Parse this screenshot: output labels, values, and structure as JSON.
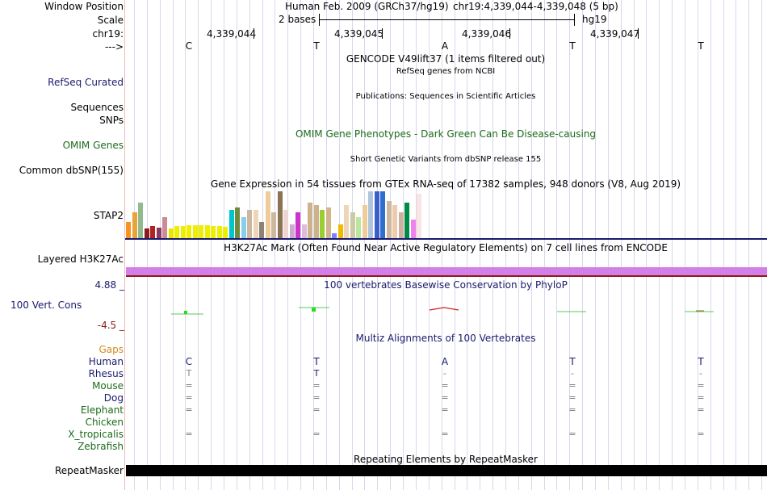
{
  "header": {
    "window_position_label": "Window Position",
    "scale_label": "Scale",
    "chrom_label": "chr19:",
    "strand_label": "--->",
    "assembly_title": "Human Feb. 2009 (GRCh37/hg19)",
    "position": "chr19:4,339,044-4,339,048 (5 bp)",
    "scale_text": "2 bases",
    "scale_db": "hg19",
    "positions": [
      "4,339,044",
      "4,339,045",
      "4,339,046",
      "4,339,047"
    ],
    "bases": [
      "C",
      "T",
      "A",
      "T",
      "T"
    ]
  },
  "tracks": {
    "gencode_title": "GENCODE V49lift37 (1 items filtered out)",
    "refseq_label": "RefSeq Curated",
    "refseq_title": "RefSeq genes from NCBI",
    "sequences_label": "Sequences",
    "publications_title": "Publications: Sequences in Scientific Articles",
    "snps_label": "SNPs",
    "omim_title": "OMIM Gene Phenotypes - Dark Green Can Be Disease-causing",
    "omim_label": "OMIM Genes",
    "dbsnp_title": "Short Genetic Variants from dbSNP release 155",
    "dbsnp_label": "Common dbSNP(155)",
    "gtex_title": "Gene Expression in 54 tissues from GTEx RNA-seq of 17382 samples, 948 donors (V8, Aug 2019)",
    "gtex_label": "STAP2",
    "h3k27_title": "H3K27Ac Mark (Often Found Near Active Regulatory Elements) on 7 cell lines from ENCODE",
    "h3k27_label": "Layered H3K27Ac",
    "phylop_title": "100 vertebrates Basewise Conservation by PhyloP",
    "phylop_label": "100 Vert. Cons",
    "phylop_max": "4.88 _",
    "phylop_min": "-4.5 _",
    "multiz_title": "Multiz Alignments of 100 Vertebrates",
    "repeat_title": "Repeating Elements by RepeatMasker",
    "repeat_label": "RepeatMasker"
  },
  "species": [
    {
      "name": "Gaps",
      "color": "#d08a1c",
      "row": []
    },
    {
      "name": "Human",
      "color": "#1a1a6e",
      "row": [
        "C",
        "T",
        "A",
        "T",
        "T"
      ]
    },
    {
      "name": "Rhesus",
      "color": "#1a1a6e",
      "row": [
        "T",
        "T",
        "-",
        "-",
        "-"
      ]
    },
    {
      "name": "Mouse",
      "color": "#1c6b1c",
      "row": [
        "=",
        "=",
        "=",
        "=",
        "="
      ]
    },
    {
      "name": "Dog",
      "color": "#1a1a6e",
      "row": [
        "=",
        "=",
        "=",
        "=",
        "="
      ]
    },
    {
      "name": "Elephant",
      "color": "#1c6b1c",
      "row": [
        "=",
        "=",
        "=",
        "=",
        "="
      ]
    },
    {
      "name": "Chicken",
      "color": "#1c6b1c",
      "row": []
    },
    {
      "name": "X_tropicalis",
      "color": "#1c6b1c",
      "row": [
        "=",
        "=",
        "=",
        "=",
        "="
      ]
    },
    {
      "name": "Zebrafish",
      "color": "#1c6b1c",
      "row": []
    }
  ],
  "gtex_bars": [
    {
      "v": 0.35,
      "c": "#f7931e"
    },
    {
      "v": 0.55,
      "c": "#e8a33a"
    },
    {
      "v": 0.75,
      "c": "#8fbc8f"
    },
    {
      "v": 0.2,
      "c": "#8b1a1a"
    },
    {
      "v": 0.25,
      "c": "#b22222"
    },
    {
      "v": 0.22,
      "c": "#8b3a62"
    },
    {
      "v": 0.45,
      "c": "#cd8c95"
    },
    {
      "v": 0.2,
      "c": "#e6e600"
    },
    {
      "v": 0.25,
      "c": "#eeee00"
    },
    {
      "v": 0.25,
      "c": "#eeee00"
    },
    {
      "v": 0.28,
      "c": "#eeee00"
    },
    {
      "v": 0.28,
      "c": "#eeee00"
    },
    {
      "v": 0.28,
      "c": "#eeee00"
    },
    {
      "v": 0.27,
      "c": "#eeee00"
    },
    {
      "v": 0.26,
      "c": "#eeee00"
    },
    {
      "v": 0.26,
      "c": "#eeee00"
    },
    {
      "v": 0.24,
      "c": "#eeee00"
    },
    {
      "v": 0.6,
      "c": "#00c5cd"
    },
    {
      "v": 0.65,
      "c": "#6e8b3d"
    },
    {
      "v": 0.45,
      "c": "#87ceeb"
    },
    {
      "v": 0.6,
      "c": "#cdb79e"
    },
    {
      "v": 0.6,
      "c": "#eed5b7"
    },
    {
      "v": 0.35,
      "c": "#8b8378"
    },
    {
      "v": 1.0,
      "c": "#eecc99"
    },
    {
      "v": 0.55,
      "c": "#cdb79e"
    },
    {
      "v": 1.0,
      "c": "#8b7355"
    },
    {
      "v": 0.6,
      "c": "#eed5d2"
    },
    {
      "v": 0.3,
      "c": "#ccaacc"
    },
    {
      "v": 0.55,
      "c": "#cc33cc"
    },
    {
      "v": 0.3,
      "c": "#ddbbdd"
    },
    {
      "v": 0.75,
      "c": "#cdb38b"
    },
    {
      "v": 0.7,
      "c": "#cdb38b"
    },
    {
      "v": 0.6,
      "c": "#9acd32"
    },
    {
      "v": 0.65,
      "c": "#d2b48c"
    },
    {
      "v": 0.1,
      "c": "#7f7fff"
    },
    {
      "v": 0.3,
      "c": "#eebb00"
    },
    {
      "v": 0.7,
      "c": "#eed5b7"
    },
    {
      "v": 0.55,
      "c": "#cdc9a5"
    },
    {
      "v": 0.45,
      "c": "#b9e6a0"
    },
    {
      "v": 0.7,
      "c": "#eecd9a"
    },
    {
      "v": 1.0,
      "c": "#b0c4de"
    },
    {
      "v": 1.0,
      "c": "#3a5fcd"
    },
    {
      "v": 1.0,
      "c": "#2f6ecd"
    },
    {
      "v": 0.8,
      "c": "#cdb79e"
    },
    {
      "v": 0.7,
      "c": "#eecbad"
    },
    {
      "v": 0.55,
      "c": "#ccb0a0"
    },
    {
      "v": 0.75,
      "c": "#008b45"
    },
    {
      "v": 0.4,
      "c": "#ee82ee"
    },
    {
      "v": 0.95,
      "c": "#fbe4e4"
    }
  ],
  "colors": {
    "grid": "#d8d8ec",
    "h3k27": "#d37fe8",
    "navy": "#1a1a6e",
    "green": "#1c6b1c",
    "maroon": "#8b1a1a"
  }
}
